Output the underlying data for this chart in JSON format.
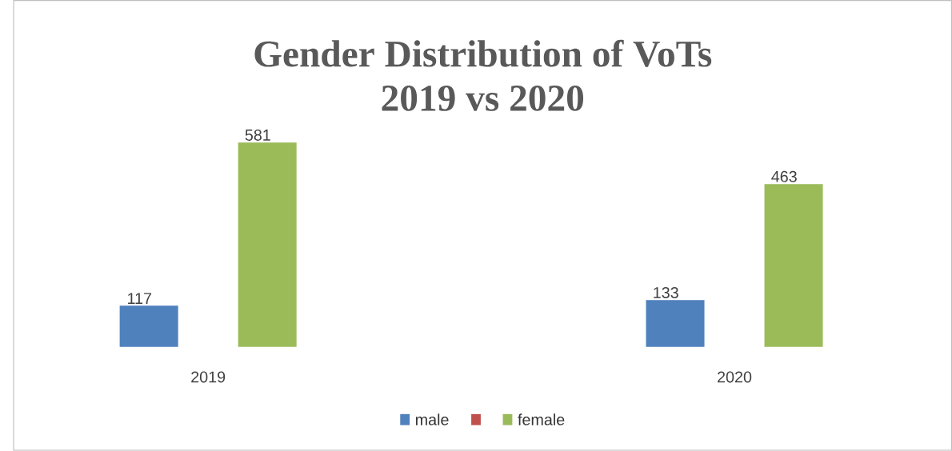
{
  "chart_data": {
    "type": "bar",
    "title": "Gender Distribution of VoTs\n2019 vs 2020",
    "categories": [
      "2019",
      "2020"
    ],
    "series": [
      {
        "name": "male",
        "color": "#4f81bd",
        "values": [
          117,
          133
        ]
      },
      {
        "color": "#c0504d",
        "values": [
          null,
          null
        ]
      },
      {
        "name": "female",
        "color": "#9bbb59",
        "values": [
          581,
          463
        ]
      }
    ],
    "data_labels": true,
    "legend": "bottom"
  }
}
